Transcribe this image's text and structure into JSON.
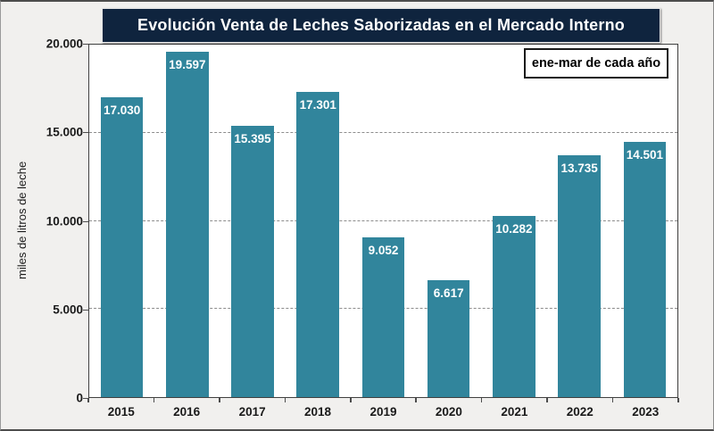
{
  "chart_data": {
    "type": "bar",
    "title": "Evolución Venta de Leches Saborizadas en el Mercado Interno",
    "annotation": "ene-mar de cada año",
    "ylabel": "miles de litros de leche",
    "xlabel": "",
    "categories": [
      "2015",
      "2016",
      "2017",
      "2018",
      "2019",
      "2020",
      "2021",
      "2022",
      "2023"
    ],
    "values": [
      17030,
      19597,
      15395,
      17301,
      9052,
      6617,
      10282,
      13735,
      14501
    ],
    "value_labels": [
      "17.030",
      "19.597",
      "15.395",
      "17.301",
      "9.052",
      "6.617",
      "10.282",
      "13.735",
      "14.501"
    ],
    "ylim": [
      0,
      20000
    ],
    "yticks": [
      0,
      5000,
      10000,
      15000,
      20000
    ],
    "ytick_labels": [
      "0",
      "5.000",
      "10.000",
      "15.000",
      "20.000"
    ],
    "grid": "horizontal-dashed",
    "legend": "none",
    "colors": {
      "bar": "#31859C",
      "title_bg": "#0F243E",
      "title_text": "#FFFFFF",
      "plot_bg": "#FFFFFF",
      "background": "#F1F0EE",
      "grid": "#8C8C8C",
      "text": "#1A1A1A"
    }
  }
}
